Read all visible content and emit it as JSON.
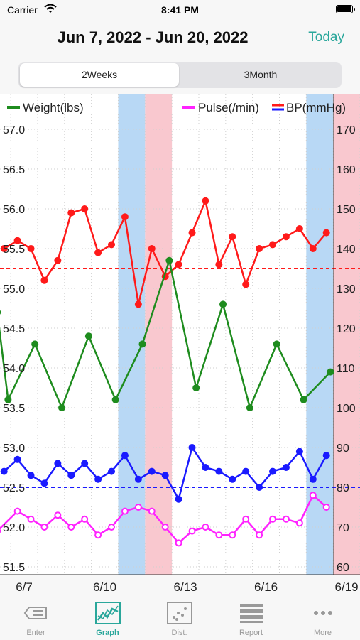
{
  "status_bar": {
    "carrier": "Carrier",
    "time": "8:41 PM"
  },
  "header": {
    "date_range": "Jun 7, 2022 - Jun 20, 2022",
    "today_label": "Today"
  },
  "segment": {
    "options": [
      "2Weeks",
      "3Month"
    ],
    "selected": "2Weeks"
  },
  "chart_data": {
    "type": "line",
    "x_tick_labels": [
      "6/7",
      "6/10",
      "6/13",
      "6/16",
      "6/19"
    ],
    "legend": [
      {
        "name": "Weight(lbs)",
        "color": "#1e8c1e"
      },
      {
        "name": "Pulse(/min)",
        "color": "#ff22ff"
      },
      {
        "name": "BP(mmHg)",
        "colors": [
          "#ff1a1a",
          "#1a1aff"
        ]
      }
    ],
    "left_axis": {
      "min": 51.5,
      "max": 57.0,
      "ticks": [
        "57.0",
        "56.5",
        "56.0",
        "55.5",
        "55.0",
        "54.5",
        "54.0",
        "53.5",
        "53.0",
        "52.5",
        "52.0",
        "51.5"
      ]
    },
    "right_axis": {
      "min": 60,
      "max": 170,
      "ticks": [
        "170",
        "160",
        "150",
        "140",
        "130",
        "120",
        "110",
        "100",
        "90",
        "80",
        "70",
        "60"
      ]
    },
    "x_range": [
      6.6,
      20.0
    ],
    "highlight_bands": [
      {
        "from": 11.0,
        "to": 12.0,
        "color": "#b8d8f5"
      },
      {
        "from": 12.0,
        "to": 13.0,
        "color": "#f9c8cf"
      },
      {
        "from": 18.0,
        "to": 19.0,
        "color": "#b8d8f5"
      },
      {
        "from": 19.0,
        "to": 20.0,
        "color": "#f9c8cf"
      }
    ],
    "reference_lines": [
      {
        "axis": "right",
        "value": 135,
        "color": "#ff1a1a"
      },
      {
        "axis": "right",
        "value": 80,
        "color": "#1a1aff"
      }
    ],
    "series": [
      {
        "name": "Systolic",
        "axis": "right",
        "color": "#ff1a1a",
        "marker": "filled",
        "points": [
          [
            6.75,
            140
          ],
          [
            7.25,
            142
          ],
          [
            7.75,
            140
          ],
          [
            8.25,
            132
          ],
          [
            8.75,
            137
          ],
          [
            9.25,
            149
          ],
          [
            9.75,
            150
          ],
          [
            10.25,
            139
          ],
          [
            10.75,
            141
          ],
          [
            11.25,
            148
          ],
          [
            11.75,
            126
          ],
          [
            12.25,
            140
          ],
          [
            12.75,
            133
          ],
          [
            13.25,
            136
          ],
          [
            13.75,
            144
          ],
          [
            14.25,
            152
          ],
          [
            14.75,
            136
          ],
          [
            15.25,
            143
          ],
          [
            15.75,
            131
          ],
          [
            16.25,
            140
          ],
          [
            16.75,
            141
          ],
          [
            17.25,
            143
          ],
          [
            17.75,
            145
          ],
          [
            18.25,
            140
          ],
          [
            18.75,
            144
          ]
        ]
      },
      {
        "name": "Diastolic",
        "axis": "right",
        "color": "#1a1aff",
        "marker": "filled",
        "points": [
          [
            6.75,
            84
          ],
          [
            7.25,
            87
          ],
          [
            7.75,
            83
          ],
          [
            8.25,
            81
          ],
          [
            8.75,
            86
          ],
          [
            9.25,
            83
          ],
          [
            9.75,
            86
          ],
          [
            10.25,
            82
          ],
          [
            10.75,
            84
          ],
          [
            11.25,
            88
          ],
          [
            11.75,
            82
          ],
          [
            12.25,
            84
          ],
          [
            12.75,
            83
          ],
          [
            13.25,
            77
          ],
          [
            13.75,
            90
          ],
          [
            14.25,
            85
          ],
          [
            14.75,
            84
          ],
          [
            15.25,
            82
          ],
          [
            15.75,
            84
          ],
          [
            16.25,
            80
          ],
          [
            16.75,
            84
          ],
          [
            17.25,
            85
          ],
          [
            17.75,
            89
          ],
          [
            18.25,
            82
          ],
          [
            18.75,
            88
          ]
        ]
      },
      {
        "name": "Pulse(/min)",
        "axis": "right",
        "color": "#ff22ff",
        "marker": "open",
        "points": [
          [
            6.5,
            69
          ],
          [
            7.25,
            74
          ],
          [
            7.75,
            72
          ],
          [
            8.25,
            70
          ],
          [
            8.75,
            73
          ],
          [
            9.25,
            70
          ],
          [
            9.75,
            72
          ],
          [
            10.25,
            68
          ],
          [
            10.75,
            70
          ],
          [
            11.25,
            74
          ],
          [
            11.75,
            75
          ],
          [
            12.25,
            74
          ],
          [
            12.75,
            70
          ],
          [
            13.25,
            66
          ],
          [
            13.75,
            69
          ],
          [
            14.25,
            70
          ],
          [
            14.75,
            68
          ],
          [
            15.25,
            68
          ],
          [
            15.75,
            72
          ],
          [
            16.25,
            68
          ],
          [
            16.75,
            72
          ],
          [
            17.25,
            72
          ],
          [
            17.75,
            71
          ],
          [
            18.25,
            78
          ],
          [
            18.75,
            75
          ]
        ]
      },
      {
        "name": "Weight(lbs)",
        "axis": "left",
        "color": "#1e8c1e",
        "marker": "filled",
        "points": [
          [
            6.5,
            54.7
          ],
          [
            6.9,
            53.6
          ],
          [
            7.9,
            54.3
          ],
          [
            8.9,
            53.5
          ],
          [
            9.9,
            54.4
          ],
          [
            10.9,
            53.6
          ],
          [
            11.9,
            54.3
          ],
          [
            12.9,
            55.35
          ],
          [
            13.9,
            53.75
          ],
          [
            14.9,
            54.8
          ],
          [
            15.9,
            53.5
          ],
          [
            16.9,
            54.3
          ],
          [
            17.9,
            53.6
          ],
          [
            18.9,
            53.95
          ]
        ]
      }
    ]
  },
  "tabs": [
    {
      "label": "Enter",
      "icon": "enter-icon"
    },
    {
      "label": "Graph",
      "icon": "graph-icon"
    },
    {
      "label": "Dist.",
      "icon": "distribution-icon"
    },
    {
      "label": "Report",
      "icon": "report-icon"
    },
    {
      "label": "More",
      "icon": "more-icon"
    }
  ],
  "selected_tab": "Graph"
}
